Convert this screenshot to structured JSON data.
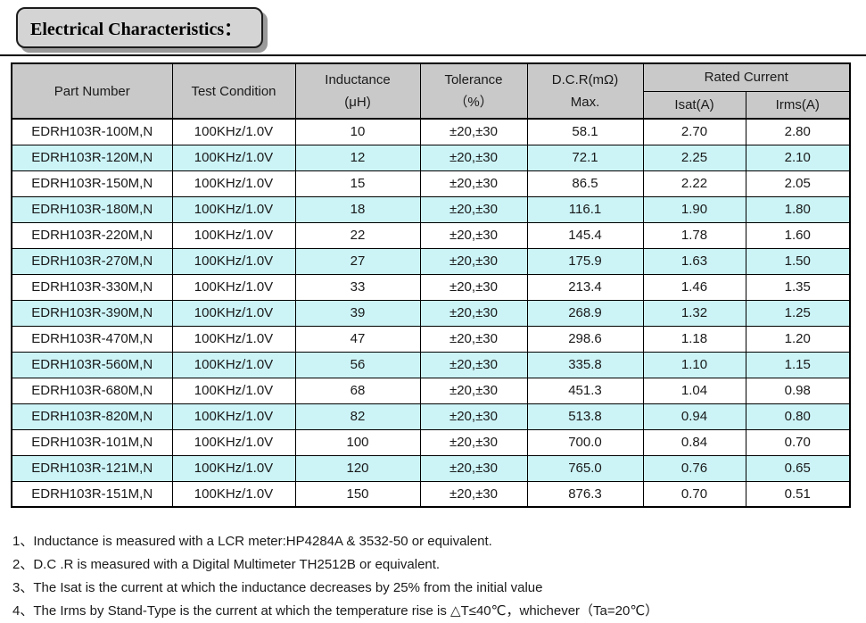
{
  "page": {
    "title": "Electrical Characteristics："
  },
  "table": {
    "headers": {
      "part_number": "Part Number",
      "test_condition": "Test Condition",
      "inductance_line1": "Inductance",
      "inductance_line2": "(μH)",
      "tolerance_line1": "Tolerance",
      "tolerance_line2": "（%）",
      "dcr_line1": "D.C.R(mΩ)",
      "dcr_line2": "Max.",
      "rated_current": "Rated Current",
      "isat": "Isat(A)",
      "irms": "Irms(A)"
    },
    "rows": [
      {
        "part_number": "EDRH103R-100M,N",
        "test_condition": "100KHz/1.0V",
        "inductance": "10",
        "tolerance": "±20,±30",
        "dcr_max": "58.1",
        "isat": "2.70",
        "irms": "2.80"
      },
      {
        "part_number": "EDRH103R-120M,N",
        "test_condition": "100KHz/1.0V",
        "inductance": "12",
        "tolerance": "±20,±30",
        "dcr_max": "72.1",
        "isat": "2.25",
        "irms": "2.10"
      },
      {
        "part_number": "EDRH103R-150M,N",
        "test_condition": "100KHz/1.0V",
        "inductance": "15",
        "tolerance": "±20,±30",
        "dcr_max": "86.5",
        "isat": "2.22",
        "irms": "2.05"
      },
      {
        "part_number": "EDRH103R-180M,N",
        "test_condition": "100KHz/1.0V",
        "inductance": "18",
        "tolerance": "±20,±30",
        "dcr_max": "116.1",
        "isat": "1.90",
        "irms": "1.80"
      },
      {
        "part_number": "EDRH103R-220M,N",
        "test_condition": "100KHz/1.0V",
        "inductance": "22",
        "tolerance": "±20,±30",
        "dcr_max": "145.4",
        "isat": "1.78",
        "irms": "1.60"
      },
      {
        "part_number": "EDRH103R-270M,N",
        "test_condition": "100KHz/1.0V",
        "inductance": "27",
        "tolerance": "±20,±30",
        "dcr_max": "175.9",
        "isat": "1.63",
        "irms": "1.50"
      },
      {
        "part_number": "EDRH103R-330M,N",
        "test_condition": "100KHz/1.0V",
        "inductance": "33",
        "tolerance": "±20,±30",
        "dcr_max": "213.4",
        "isat": "1.46",
        "irms": "1.35"
      },
      {
        "part_number": "EDRH103R-390M,N",
        "test_condition": "100KHz/1.0V",
        "inductance": "39",
        "tolerance": "±20,±30",
        "dcr_max": "268.9",
        "isat": "1.32",
        "irms": "1.25"
      },
      {
        "part_number": "EDRH103R-470M,N",
        "test_condition": "100KHz/1.0V",
        "inductance": "47",
        "tolerance": "±20,±30",
        "dcr_max": "298.6",
        "isat": "1.18",
        "irms": "1.20"
      },
      {
        "part_number": "EDRH103R-560M,N",
        "test_condition": "100KHz/1.0V",
        "inductance": "56",
        "tolerance": "±20,±30",
        "dcr_max": "335.8",
        "isat": "1.10",
        "irms": "1.15"
      },
      {
        "part_number": "EDRH103R-680M,N",
        "test_condition": "100KHz/1.0V",
        "inductance": "68",
        "tolerance": "±20,±30",
        "dcr_max": "451.3",
        "isat": "1.04",
        "irms": "0.98"
      },
      {
        "part_number": "EDRH103R-820M,N",
        "test_condition": "100KHz/1.0V",
        "inductance": "82",
        "tolerance": "±20,±30",
        "dcr_max": "513.8",
        "isat": "0.94",
        "irms": "0.80"
      },
      {
        "part_number": "EDRH103R-101M,N",
        "test_condition": "100KHz/1.0V",
        "inductance": "100",
        "tolerance": "±20,±30",
        "dcr_max": "700.0",
        "isat": "0.84",
        "irms": "0.70"
      },
      {
        "part_number": "EDRH103R-121M,N",
        "test_condition": "100KHz/1.0V",
        "inductance": "120",
        "tolerance": "±20,±30",
        "dcr_max": "765.0",
        "isat": "0.76",
        "irms": "0.65"
      },
      {
        "part_number": "EDRH103R-151M,N",
        "test_condition": "100KHz/1.0V",
        "inductance": "150",
        "tolerance": "±20,±30",
        "dcr_max": "876.3",
        "isat": "0.70",
        "irms": "0.51"
      }
    ]
  },
  "notes": [
    "1、Inductance is measured with a LCR meter:HP4284A & 3532-50 or equivalent.",
    "2、D.C .R is measured with a Digital Multimeter TH2512B or equivalent.",
    "3、The Isat is the current at which the inductance decreases by 25% from the initial value",
    "4、The Irms by Stand-Type is the current at which the temperature rise is △T≤40℃，whichever（Ta=20℃）"
  ],
  "colors": {
    "header_bg": "#c9c9c9",
    "row_alt": "#ccf4f7",
    "title_bg": "#d4d4d4",
    "border": "#000000"
  }
}
